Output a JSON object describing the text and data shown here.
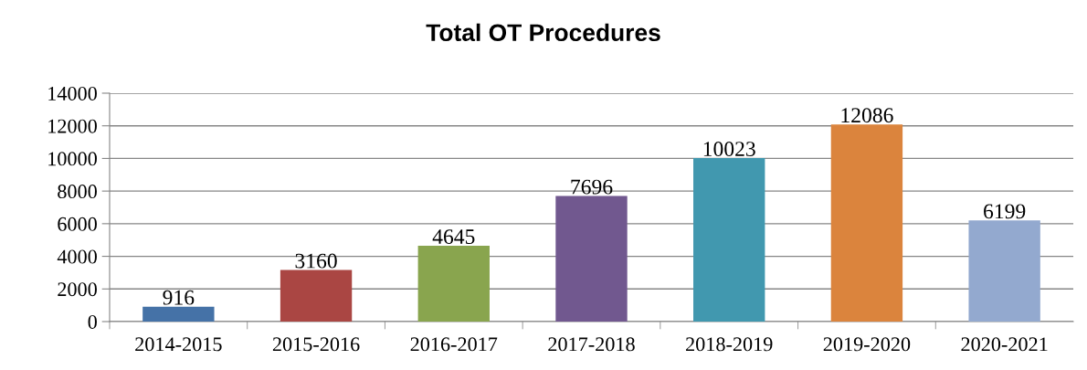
{
  "chart_data": {
    "type": "bar",
    "title": "Total OT Procedures",
    "categories": [
      "2014-2015",
      "2015-2016",
      "2016-2017",
      "2017-2018",
      "2018-2019",
      "2019-2020",
      "2020-2021"
    ],
    "values": [
      916,
      3160,
      4645,
      7696,
      10023,
      12086,
      6199
    ],
    "colors": [
      "#4572a7",
      "#aa4643",
      "#89a54e",
      "#71588f",
      "#4198af",
      "#db843d",
      "#93a9cf"
    ],
    "ylim": [
      0,
      14000
    ],
    "yticks": [
      0,
      2000,
      4000,
      6000,
      8000,
      10000,
      12000,
      14000
    ],
    "grid": "y",
    "data_labels": true
  }
}
